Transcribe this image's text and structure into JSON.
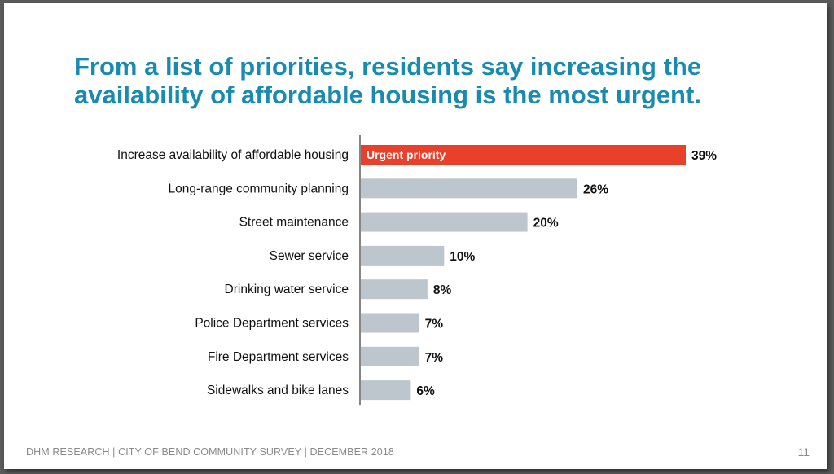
{
  "slide": {
    "title_lines": [
      "From a list of priorities, residents say increasing the",
      "availability of affordable housing is the most urgent."
    ],
    "footer": "DHM RESEARCH | CITY OF BEND COMMUNITY SURVEY | DECEMBER 2018",
    "page_number": "11"
  },
  "chart_data": {
    "type": "bar",
    "orientation": "horizontal",
    "categories": [
      "Increase availability of affordable housing",
      "Long-range community planning",
      "Street maintenance",
      "Sewer service",
      "Drinking water service",
      "Police Department services",
      "Fire Department services",
      "Sidewalks and bike lanes"
    ],
    "values": [
      39,
      26,
      20,
      10,
      8,
      7,
      7,
      6
    ],
    "value_labels": [
      "39%",
      "26%",
      "20%",
      "10%",
      "8%",
      "7%",
      "7%",
      "6%"
    ],
    "bar_annotation": {
      "index": 0,
      "text": "Urgent priority"
    },
    "highlight_index": 0,
    "colors": {
      "highlight": "#e8402a",
      "default": "#bcc6cc",
      "axis": "#444444"
    },
    "xlim": [
      0,
      39
    ],
    "grid": false
  }
}
